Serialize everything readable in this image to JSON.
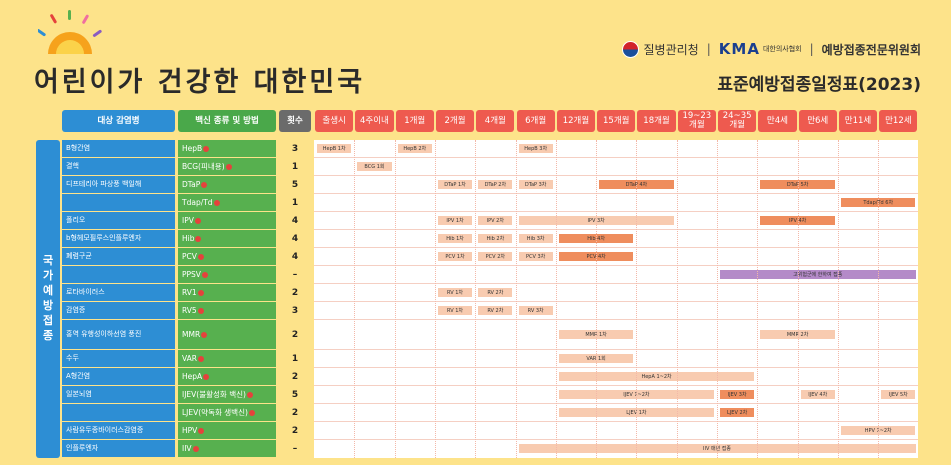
{
  "header": {
    "main_title": "어린이가 건강한 대한민국",
    "org1": "질병관리청",
    "org_sep": "|",
    "org2": "KMA",
    "org2_sub": "대한의사협회",
    "org3": "예방접종전문위원회",
    "sub_title": "표준예방접종일정표(2023)"
  },
  "columns": {
    "disease": "대상 감염병",
    "vaccine": "백신 종류 및 방법",
    "count": "횟수",
    "ages": [
      "출생시",
      "4주이내",
      "1개월",
      "2개월",
      "4개월",
      "6개월",
      "12개월",
      "15개월",
      "18개월",
      "19~23 개월",
      "24~35 개월",
      "만4세",
      "만6세",
      "만11세",
      "만12세"
    ]
  },
  "group_label": "국가예방접종",
  "rows": [
    {
      "disease": "B형간염",
      "vaccine": "HepB",
      "count": "3"
    },
    {
      "disease": "결핵",
      "vaccine": "BCG(피내용)",
      "count": "1"
    },
    {
      "disease": "디프테리아 파상풍 백일해",
      "vaccine": "DTaP",
      "count": "5"
    },
    {
      "disease": "",
      "vaccine": "Tdap/Td",
      "count": "1"
    },
    {
      "disease": "폴리오",
      "vaccine": "IPV",
      "count": "4"
    },
    {
      "disease": "b형헤모필루스인플루엔자",
      "vaccine": "Hib",
      "count": "4"
    },
    {
      "disease": "폐렴구균",
      "vaccine": "PCV",
      "count": "4"
    },
    {
      "disease": "",
      "vaccine": "PPSV",
      "count": "–"
    },
    {
      "disease": "로타바이러스",
      "vaccine": "RV1",
      "count": "2"
    },
    {
      "disease": "감염증",
      "vaccine": "RV5",
      "count": "3"
    },
    {
      "disease": "홍역 유행성이하선염 풍진",
      "vaccine": "MMR",
      "count": "2"
    },
    {
      "disease": "수두",
      "vaccine": "VAR",
      "count": "1"
    },
    {
      "disease": "A형간염",
      "vaccine": "HepA",
      "count": "2"
    },
    {
      "disease": "일본뇌염",
      "vaccine": "IJEV(불활성화 백신)",
      "count": "5"
    },
    {
      "disease": "",
      "vaccine": "LJEV(약독화 생백신)",
      "count": "2"
    },
    {
      "disease": "사람유두종바이러스감염증",
      "vaccine": "HPV",
      "count": "2"
    },
    {
      "disease": "인플루엔자",
      "vaccine": "IIV",
      "count": "–"
    }
  ],
  "bars": [
    {
      "row": 0,
      "from": 0,
      "to": 0,
      "label": "HepB 1차",
      "style": "p"
    },
    {
      "row": 0,
      "from": 2,
      "to": 2,
      "label": "HepB 2차",
      "style": "p"
    },
    {
      "row": 0,
      "from": 5,
      "to": 5,
      "label": "HepB 3차",
      "style": "p"
    },
    {
      "row": 1,
      "from": 1,
      "to": 1,
      "label": "BCG 1회",
      "style": "p"
    },
    {
      "row": 2,
      "from": 3,
      "to": 3,
      "label": "DTaP 1차",
      "style": "p"
    },
    {
      "row": 2,
      "from": 4,
      "to": 4,
      "label": "DTaP 2차",
      "style": "p"
    },
    {
      "row": 2,
      "from": 5,
      "to": 5,
      "label": "DTaP 3차",
      "style": "p"
    },
    {
      "row": 2,
      "from": 7,
      "to": 8,
      "label": "DTaP 4차",
      "style": "o"
    },
    {
      "row": 2,
      "from": 11,
      "to": 12,
      "label": "DTaP 5차",
      "style": "o"
    },
    {
      "row": 3,
      "from": 13,
      "to": 14,
      "label": "Tdap/Td 6차",
      "style": "o"
    },
    {
      "row": 4,
      "from": 3,
      "to": 3,
      "label": "IPV 1차",
      "style": "p"
    },
    {
      "row": 4,
      "from": 4,
      "to": 4,
      "label": "IPV 2차",
      "style": "p"
    },
    {
      "row": 4,
      "from": 5,
      "to": 8,
      "label": "IPV 3차",
      "style": "p"
    },
    {
      "row": 4,
      "from": 11,
      "to": 12,
      "label": "IPV 4차",
      "style": "o"
    },
    {
      "row": 5,
      "from": 3,
      "to": 3,
      "label": "Hib 1차",
      "style": "p"
    },
    {
      "row": 5,
      "from": 4,
      "to": 4,
      "label": "Hib 2차",
      "style": "p"
    },
    {
      "row": 5,
      "from": 5,
      "to": 5,
      "label": "Hib 3차",
      "style": "p"
    },
    {
      "row": 5,
      "from": 6,
      "to": 7,
      "label": "Hib 4차",
      "style": "o"
    },
    {
      "row": 6,
      "from": 3,
      "to": 3,
      "label": "PCV 1차",
      "style": "p"
    },
    {
      "row": 6,
      "from": 4,
      "to": 4,
      "label": "PCV 2차",
      "style": "p"
    },
    {
      "row": 6,
      "from": 5,
      "to": 5,
      "label": "PCV 3차",
      "style": "p"
    },
    {
      "row": 6,
      "from": 6,
      "to": 7,
      "label": "PCV 4차",
      "style": "o"
    },
    {
      "row": 7,
      "from": 10,
      "to": 14,
      "label": "고위험군에 한하여 접종",
      "style": "v"
    },
    {
      "row": 8,
      "from": 3,
      "to": 3,
      "label": "RV 1차",
      "style": "p"
    },
    {
      "row": 8,
      "from": 4,
      "to": 4,
      "label": "RV 2차",
      "style": "p"
    },
    {
      "row": 9,
      "from": 3,
      "to": 3,
      "label": "RV 1차",
      "style": "p"
    },
    {
      "row": 9,
      "from": 4,
      "to": 4,
      "label": "RV 2차",
      "style": "p"
    },
    {
      "row": 9,
      "from": 5,
      "to": 5,
      "label": "RV 3차",
      "style": "p"
    },
    {
      "row": 10,
      "from": 6,
      "to": 7,
      "label": "MMR 1차",
      "style": "p"
    },
    {
      "row": 10,
      "from": 11,
      "to": 12,
      "label": "MMR 2차",
      "style": "p"
    },
    {
      "row": 11,
      "from": 6,
      "to": 7,
      "label": "VAR 1회",
      "style": "p"
    },
    {
      "row": 12,
      "from": 6,
      "to": 10,
      "label": "HepA 1~2차",
      "style": "p"
    },
    {
      "row": 13,
      "from": 6,
      "to": 9,
      "label": "IJEV 1~2차",
      "style": "p"
    },
    {
      "row": 13,
      "from": 10,
      "to": 10,
      "label": "IJEV 3차",
      "style": "o"
    },
    {
      "row": 13,
      "from": 12,
      "to": 12,
      "label": "IJEV 4차",
      "style": "p"
    },
    {
      "row": 13,
      "from": 14,
      "to": 14,
      "label": "IJEV 5차",
      "style": "p"
    },
    {
      "row": 14,
      "from": 6,
      "to": 9,
      "label": "LJEV 1차",
      "style": "p"
    },
    {
      "row": 14,
      "from": 10,
      "to": 10,
      "label": "LJEV 2차",
      "style": "o"
    },
    {
      "row": 15,
      "from": 13,
      "to": 14,
      "label": "HPV 1~2차",
      "style": "p"
    },
    {
      "row": 16,
      "from": 5,
      "to": 14,
      "label": "IIV 매년 접종",
      "style": "p"
    }
  ]
}
